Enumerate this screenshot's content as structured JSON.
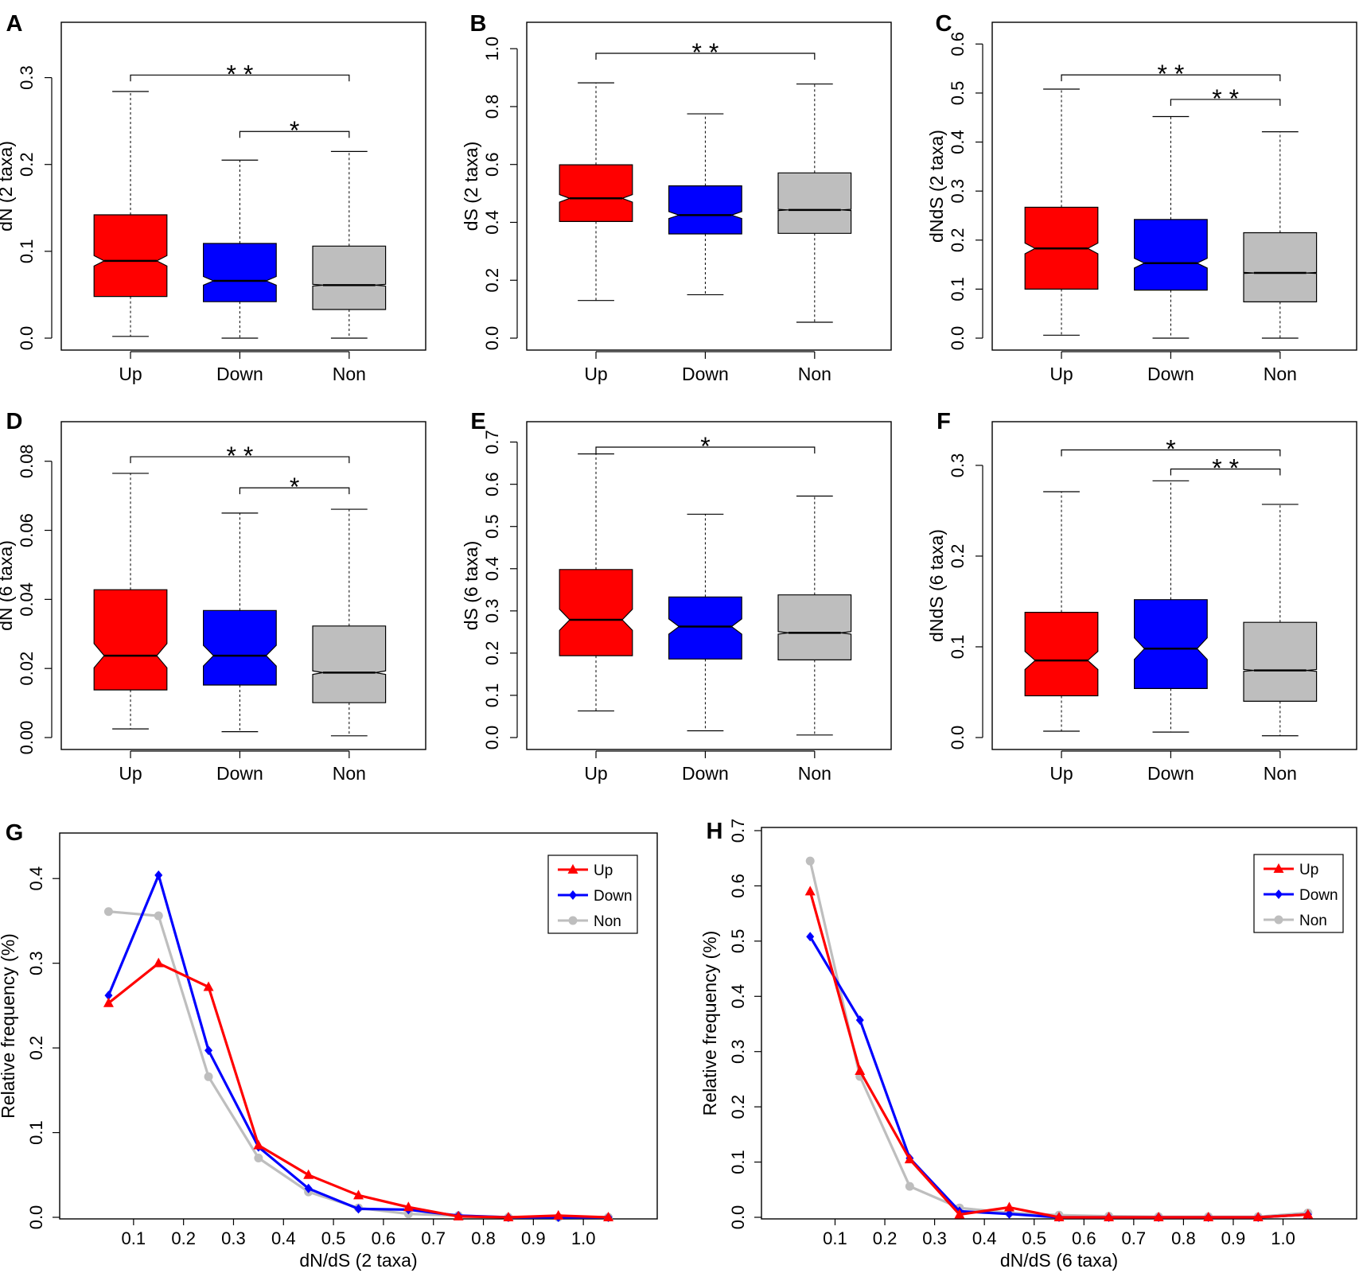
{
  "colors": {
    "up": "#ff0000",
    "down": "#0000ff",
    "non": "#bebebe"
  },
  "chart_data": [
    {
      "type": "box",
      "panel": "A",
      "ylabel": "dN (2 taxa)",
      "ylim": [
        0,
        0.35
      ],
      "yticks": [
        0.0,
        0.1,
        0.2,
        0.3
      ],
      "ytick_labels": [
        "0.0",
        "0.1",
        "0.2",
        "0.3"
      ],
      "categories": [
        "Up",
        "Down",
        "Non"
      ],
      "boxes": [
        {
          "name": "Up",
          "color": "up",
          "min": 0.002,
          "q1": 0.048,
          "median": 0.089,
          "q3": 0.142,
          "max": 0.284,
          "notch": 0.006
        },
        {
          "name": "Down",
          "color": "down",
          "min": 0.0,
          "q1": 0.042,
          "median": 0.066,
          "q3": 0.109,
          "max": 0.205,
          "notch": 0.005
        },
        {
          "name": "Non",
          "color": "non",
          "min": 0.0,
          "q1": 0.033,
          "median": 0.061,
          "q3": 0.106,
          "max": 0.215,
          "notch": 0.001
        }
      ],
      "significance": [
        {
          "from": 0,
          "to": 2,
          "y": 0.303,
          "label": "* *"
        },
        {
          "from": 1,
          "to": 2,
          "y": 0.238,
          "label": "*"
        }
      ]
    },
    {
      "type": "box",
      "panel": "B",
      "ylabel": "dS (2 taxa)",
      "ylim": [
        0,
        1.05
      ],
      "yticks": [
        0.0,
        0.2,
        0.4,
        0.6,
        0.8,
        1.0
      ],
      "ytick_labels": [
        "0.0",
        "0.2",
        "0.4",
        "0.6",
        "0.8",
        "1.0"
      ],
      "categories": [
        "Up",
        "Down",
        "Non"
      ],
      "boxes": [
        {
          "name": "Up",
          "color": "up",
          "min": 0.13,
          "q1": 0.403,
          "median": 0.483,
          "q3": 0.599,
          "max": 0.882,
          "notch": 0.013
        },
        {
          "name": "Down",
          "color": "down",
          "min": 0.15,
          "q1": 0.36,
          "median": 0.425,
          "q3": 0.526,
          "max": 0.775,
          "notch": 0.012
        },
        {
          "name": "Non",
          "color": "non",
          "min": 0.055,
          "q1": 0.362,
          "median": 0.443,
          "q3": 0.571,
          "max": 0.878,
          "notch": 0.002
        }
      ],
      "significance": [
        {
          "from": 0,
          "to": 2,
          "y": 0.984,
          "label": "* *"
        }
      ]
    },
    {
      "type": "box",
      "panel": "C",
      "ylabel": "dNdS (2 taxa)",
      "ylim": [
        0,
        0.62
      ],
      "yticks": [
        0.0,
        0.1,
        0.2,
        0.3,
        0.4,
        0.5,
        0.6
      ],
      "ytick_labels": [
        "0.0",
        "0.1",
        "0.2",
        "0.3",
        "0.4",
        "0.5",
        "0.6"
      ],
      "categories": [
        "Up",
        "Down",
        "Non"
      ],
      "boxes": [
        {
          "name": "Up",
          "color": "up",
          "min": 0.006,
          "q1": 0.1,
          "median": 0.183,
          "q3": 0.267,
          "max": 0.508,
          "notch": 0.011
        },
        {
          "name": "Down",
          "color": "down",
          "min": 0.0,
          "q1": 0.098,
          "median": 0.153,
          "q3": 0.242,
          "max": 0.452,
          "notch": 0.01
        },
        {
          "name": "Non",
          "color": "non",
          "min": 0.0,
          "q1": 0.074,
          "median": 0.133,
          "q3": 0.215,
          "max": 0.421,
          "notch": 0.001
        }
      ],
      "significance": [
        {
          "from": 0,
          "to": 2,
          "y": 0.537,
          "label": "* *"
        },
        {
          "from": 1,
          "to": 2,
          "y": 0.487,
          "label": "* *"
        }
      ]
    },
    {
      "type": "box",
      "panel": "D",
      "ylabel": "dN (6 taxa)",
      "ylim": [
        0,
        0.088
      ],
      "yticks": [
        0.0,
        0.02,
        0.04,
        0.06,
        0.08
      ],
      "ytick_labels": [
        "0.00",
        "0.02",
        "0.04",
        "0.06",
        "0.08"
      ],
      "categories": [
        "Up",
        "Down",
        "Non"
      ],
      "boxes": [
        {
          "name": "Up",
          "color": "up",
          "min": 0.0025,
          "q1": 0.0138,
          "median": 0.0237,
          "q3": 0.0428,
          "max": 0.0765,
          "notch": 0.0035
        },
        {
          "name": "Down",
          "color": "down",
          "min": 0.0017,
          "q1": 0.0152,
          "median": 0.0237,
          "q3": 0.0368,
          "max": 0.065,
          "notch": 0.003
        },
        {
          "name": "Non",
          "color": "non",
          "min": 0.0005,
          "q1": 0.0101,
          "median": 0.0188,
          "q3": 0.0323,
          "max": 0.0661,
          "notch": 0.0005
        }
      ],
      "significance": [
        {
          "from": 0,
          "to": 2,
          "y": 0.0813,
          "label": "* *"
        },
        {
          "from": 1,
          "to": 2,
          "y": 0.0723,
          "label": "*"
        }
      ]
    },
    {
      "type": "box",
      "panel": "E",
      "ylabel": "dS (6 taxa)",
      "ylim": [
        0,
        0.72
      ],
      "yticks": [
        0.0,
        0.1,
        0.2,
        0.3,
        0.4,
        0.5,
        0.6,
        0.7
      ],
      "ytick_labels": [
        "0.0",
        "0.1",
        "0.2",
        "0.3",
        "0.4",
        "0.5",
        "0.6",
        "0.7"
      ],
      "categories": [
        "Up",
        "Down",
        "Non"
      ],
      "boxes": [
        {
          "name": "Up",
          "color": "up",
          "min": 0.063,
          "q1": 0.194,
          "median": 0.279,
          "q3": 0.398,
          "max": 0.672,
          "notch": 0.025
        },
        {
          "name": "Down",
          "color": "down",
          "min": 0.016,
          "q1": 0.186,
          "median": 0.263,
          "q3": 0.333,
          "max": 0.529,
          "notch": 0.018
        },
        {
          "name": "Non",
          "color": "non",
          "min": 0.006,
          "q1": 0.184,
          "median": 0.248,
          "q3": 0.338,
          "max": 0.572,
          "notch": 0.003
        }
      ],
      "significance": [
        {
          "from": 0,
          "to": 2,
          "y": 0.688,
          "label": "*"
        }
      ]
    },
    {
      "type": "box",
      "panel": "F",
      "ylabel": "dNdS (6 taxa)",
      "ylim": [
        0,
        0.335
      ],
      "yticks": [
        0.0,
        0.1,
        0.2,
        0.3
      ],
      "ytick_labels": [
        "0.0",
        "0.1",
        "0.2",
        "0.3"
      ],
      "categories": [
        "Up",
        "Down",
        "Non"
      ],
      "boxes": [
        {
          "name": "Up",
          "color": "up",
          "min": 0.007,
          "q1": 0.046,
          "median": 0.085,
          "q3": 0.138,
          "max": 0.271,
          "notch": 0.01
        },
        {
          "name": "Down",
          "color": "down",
          "min": 0.006,
          "q1": 0.054,
          "median": 0.098,
          "q3": 0.152,
          "max": 0.283,
          "notch": 0.012
        },
        {
          "name": "Non",
          "color": "non",
          "min": 0.002,
          "q1": 0.04,
          "median": 0.074,
          "q3": 0.127,
          "max": 0.257,
          "notch": 0.001
        }
      ],
      "significance": [
        {
          "from": 0,
          "to": 2,
          "y": 0.317,
          "label": "*"
        },
        {
          "from": 1,
          "to": 2,
          "y": 0.296,
          "label": "* *"
        }
      ]
    },
    {
      "type": "line",
      "panel": "G",
      "xlabel": "dN/dS (2 taxa)",
      "ylabel": "Relative frequency (%)",
      "xlim": [
        0.0,
        1.1
      ],
      "ylim": [
        0,
        0.45
      ],
      "xticks": [
        0.1,
        0.2,
        0.3,
        0.4,
        0.5,
        0.6,
        0.7,
        0.8,
        0.9,
        1.0
      ],
      "xtick_labels": [
        "0.1",
        "0.2",
        "0.3",
        "0.4",
        "0.5",
        "0.6",
        "0.7",
        "0.8",
        "0.9",
        "1.0"
      ],
      "yticks": [
        0.0,
        0.1,
        0.2,
        0.3,
        0.4
      ],
      "ytick_labels": [
        "0.0",
        "0.1",
        "0.2",
        "0.3",
        "0.4"
      ],
      "legend_position": "top-right",
      "x": [
        0.05,
        0.15,
        0.25,
        0.35,
        0.45,
        0.55,
        0.65,
        0.75,
        0.85,
        0.95,
        1.05
      ],
      "series": [
        {
          "name": "Up",
          "color": "up",
          "marker": "triangle",
          "values": [
            0.253,
            0.3,
            0.272,
            0.085,
            0.05,
            0.026,
            0.012,
            0.001,
            0.0,
            0.002,
            0.0
          ]
        },
        {
          "name": "Down",
          "color": "down",
          "marker": "diamond",
          "values": [
            0.262,
            0.404,
            0.197,
            0.083,
            0.034,
            0.01,
            0.009,
            0.002,
            0.0,
            0.0,
            0.0
          ]
        },
        {
          "name": "Non",
          "color": "non",
          "marker": "circle",
          "values": [
            0.361,
            0.356,
            0.166,
            0.07,
            0.03,
            0.011,
            0.004,
            0.002,
            0.0,
            0.0,
            0.0
          ]
        }
      ]
    },
    {
      "type": "line",
      "panel": "H",
      "xlabel": "dN/dS (6 taxa)",
      "ylabel": "Relative frequency (%)",
      "xlim": [
        0.0,
        1.1
      ],
      "ylim": [
        0,
        0.7
      ],
      "xticks": [
        0.1,
        0.2,
        0.3,
        0.4,
        0.5,
        0.6,
        0.7,
        0.8,
        0.9,
        1.0
      ],
      "xtick_labels": [
        "0.1",
        "0.2",
        "0.3",
        "0.4",
        "0.5",
        "0.6",
        "0.7",
        "0.8",
        "0.9",
        "1.0"
      ],
      "yticks": [
        0.0,
        0.1,
        0.2,
        0.3,
        0.4,
        0.5,
        0.6,
        0.7
      ],
      "ytick_labels": [
        "0.0",
        "0.1",
        "0.2",
        "0.3",
        "0.4",
        "0.5",
        "0.6",
        "0.7"
      ],
      "legend_position": "top-right",
      "x": [
        0.05,
        0.15,
        0.25,
        0.35,
        0.45,
        0.55,
        0.65,
        0.75,
        0.85,
        0.95,
        1.05
      ],
      "series": [
        {
          "name": "Up",
          "color": "up",
          "marker": "triangle",
          "values": [
            0.59,
            0.265,
            0.105,
            0.005,
            0.018,
            0.0,
            0.0,
            0.0,
            0.0,
            0.0,
            0.005
          ]
        },
        {
          "name": "Down",
          "color": "down",
          "marker": "diamond",
          "values": [
            0.508,
            0.357,
            0.107,
            0.011,
            0.006,
            0.0,
            0.0,
            0.0,
            0.0,
            0.0,
            0.005
          ]
        },
        {
          "name": "Non",
          "color": "non",
          "marker": "circle",
          "values": [
            0.645,
            0.255,
            0.056,
            0.017,
            0.008,
            0.004,
            0.002,
            0.001,
            0.001,
            0.001,
            0.008
          ]
        }
      ]
    }
  ]
}
